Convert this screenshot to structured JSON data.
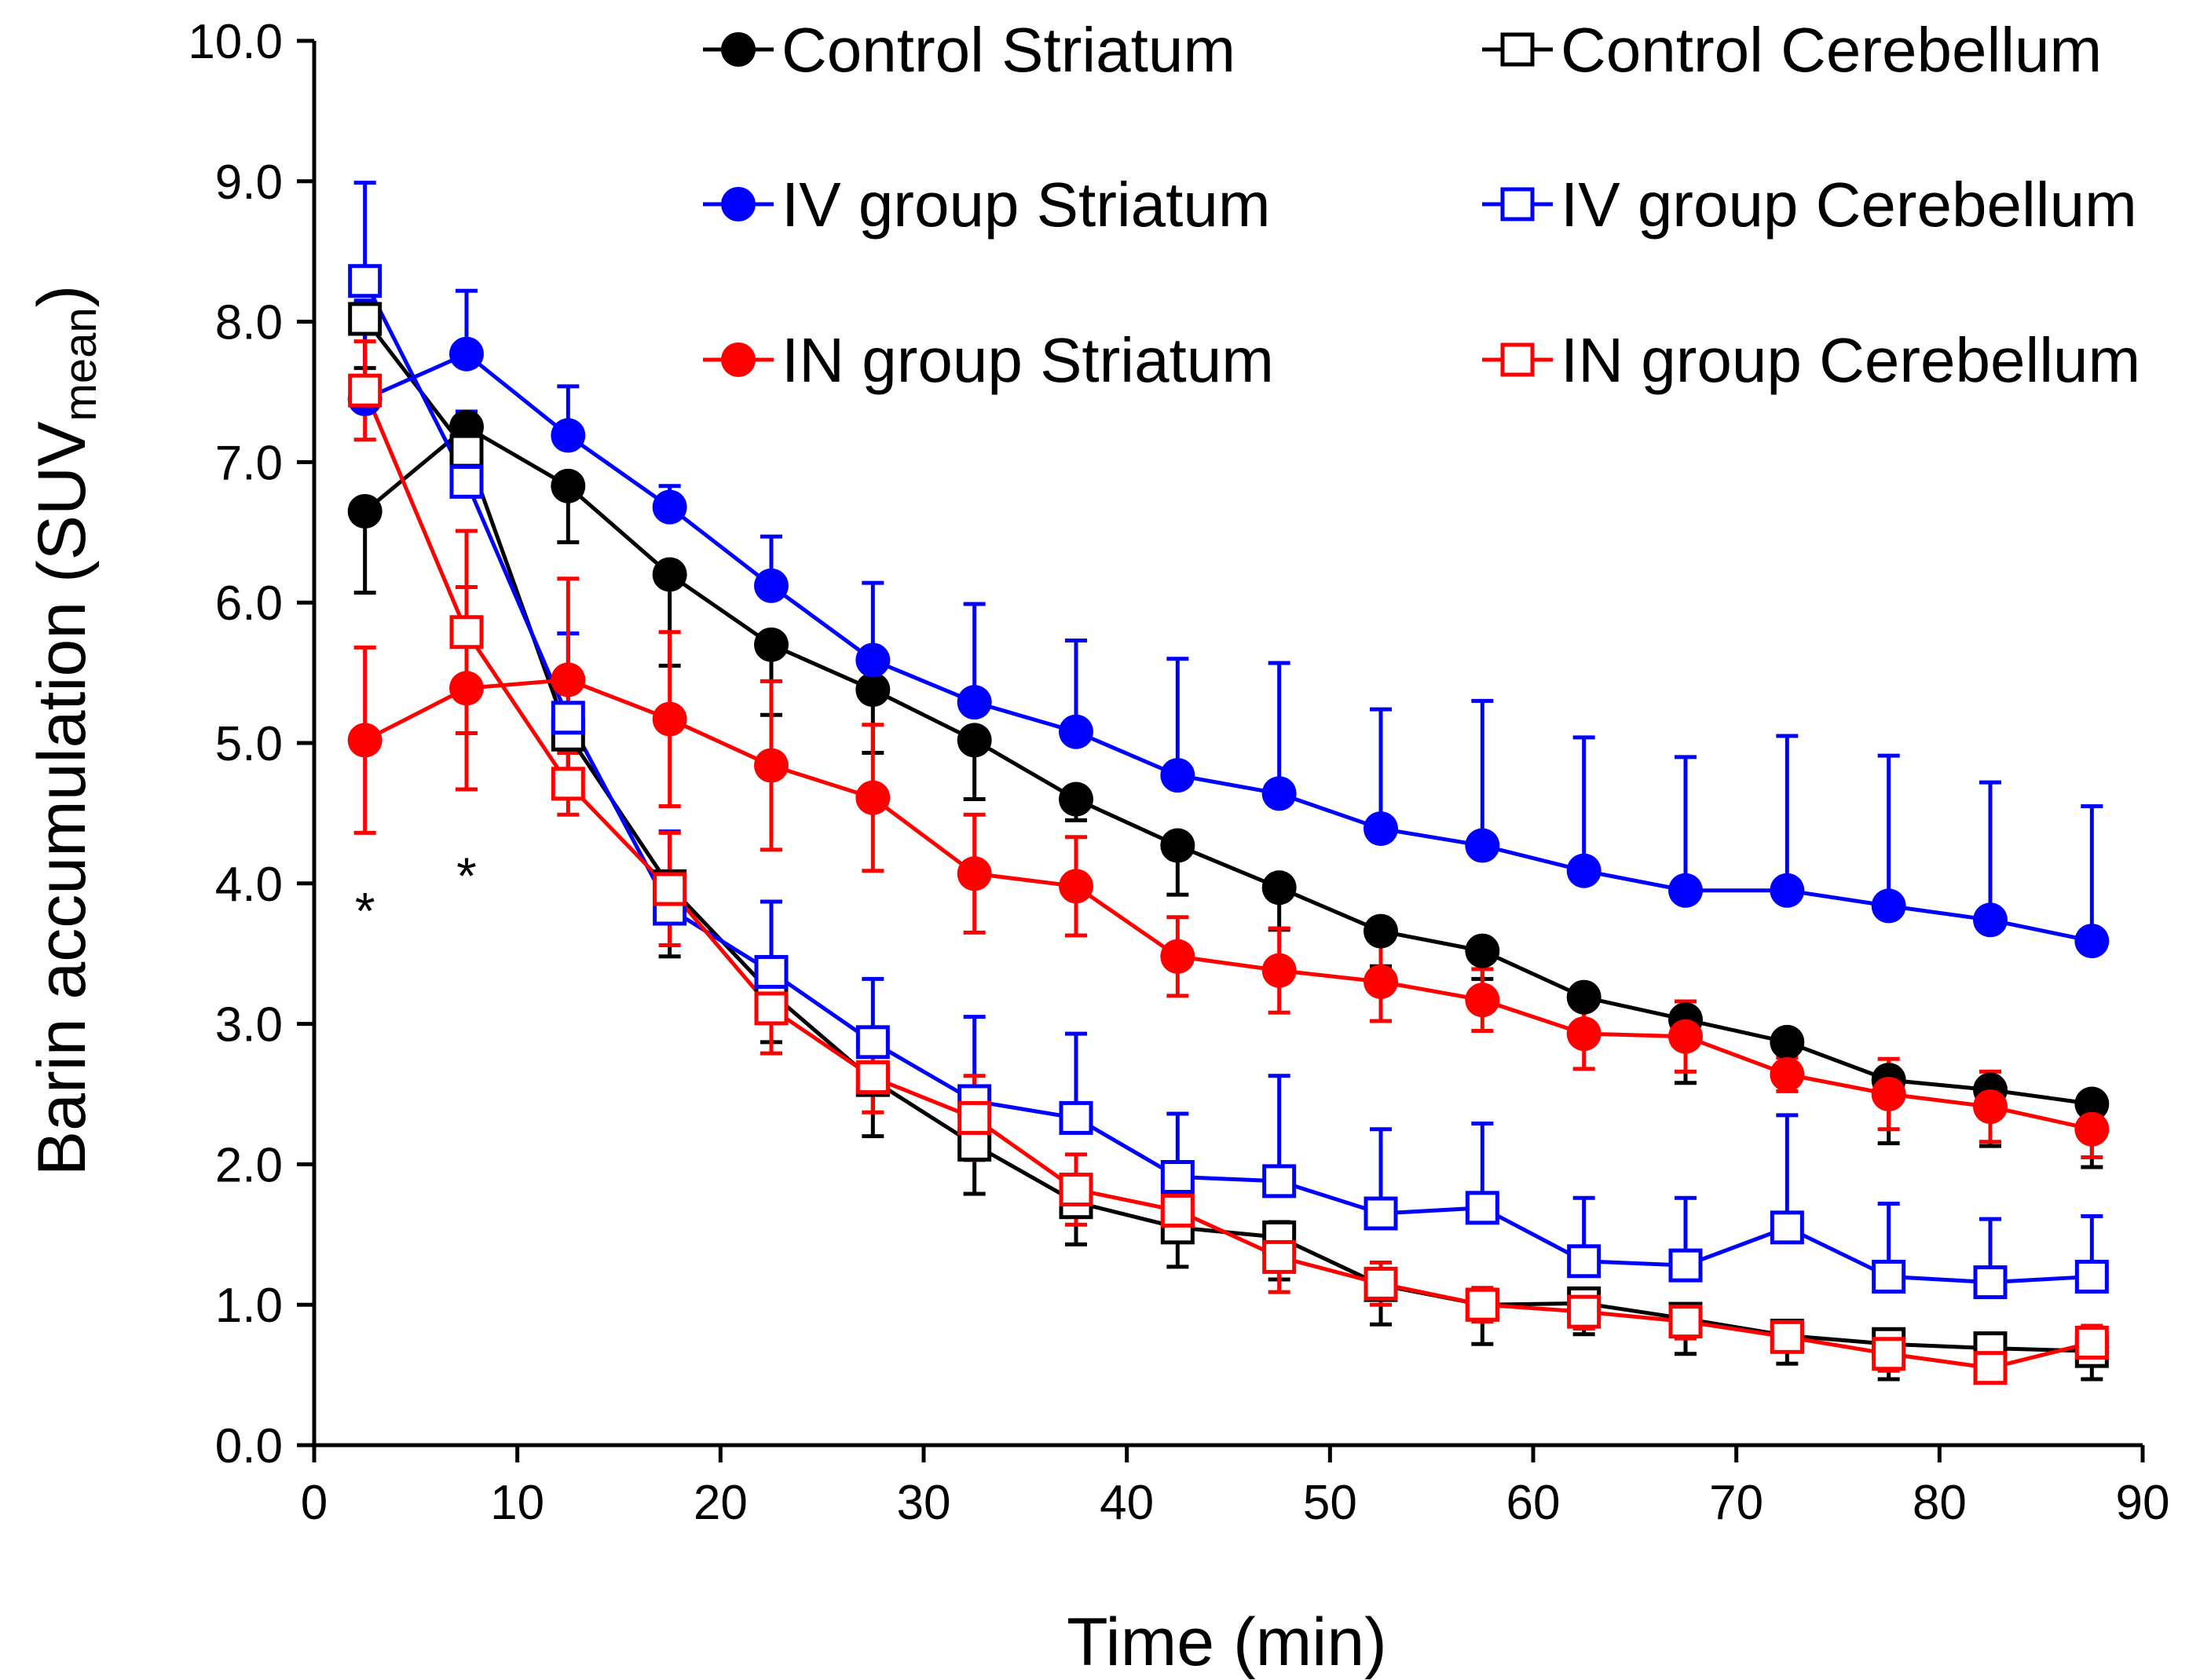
{
  "chart_data": {
    "type": "line",
    "title": "",
    "xlabel": "Time (min)",
    "ylabel": "Barin accumulation (SUV",
    "ylabel_subscript": "mean",
    "ylabel_close": ")",
    "xlim": [
      0,
      90
    ],
    "ylim": [
      0,
      10
    ],
    "x_ticks": [
      "0",
      "10",
      "20",
      "30",
      "40",
      "50",
      "60",
      "70",
      "80",
      "90"
    ],
    "y_ticks": [
      "0.0",
      "1.0",
      "2.0",
      "3.0",
      "4.0",
      "5.0",
      "6.0",
      "7.0",
      "8.0",
      "9.0",
      "10.0"
    ],
    "x": [
      2.5,
      7.5,
      12.5,
      17.5,
      22.5,
      27.5,
      32.5,
      37.5,
      42.5,
      47.5,
      52.5,
      57.5,
      62.5,
      67.5,
      72.5,
      77.5,
      82.5,
      87.5
    ],
    "legend_location": "top",
    "series": [
      {
        "name": "Control Striatum",
        "color": "#000000",
        "marker": "circle",
        "error_dir": "down",
        "values": [
          6.65,
          7.25,
          6.83,
          6.2,
          5.7,
          5.38,
          5.02,
          4.6,
          4.27,
          3.97,
          3.66,
          3.52,
          3.19,
          3.03,
          2.87,
          2.6,
          2.53,
          2.43
        ],
        "errors": [
          0.58,
          0.4,
          0.4,
          0.65,
          0.5,
          0.45,
          0.42,
          0.15,
          0.35,
          0.3,
          0.25,
          0.2,
          0.2,
          0.45,
          0.3,
          0.45,
          0.4,
          0.45
        ]
      },
      {
        "name": "Control Cerebellum",
        "color": "#000000",
        "marker": "square",
        "error_dir": "down",
        "values": [
          8.02,
          7.08,
          5.06,
          3.98,
          3.22,
          2.6,
          2.14,
          1.73,
          1.55,
          1.48,
          1.14,
          1.0,
          1.01,
          0.9,
          0.78,
          0.72,
          0.69,
          0.67
        ],
        "errors": [
          0.35,
          0.3,
          0.25,
          0.5,
          0.35,
          0.4,
          0.35,
          0.3,
          0.28,
          0.3,
          0.28,
          0.28,
          0.22,
          0.25,
          0.2,
          0.25,
          0.2,
          0.2
        ]
      },
      {
        "name": "IV group Striatum",
        "color": "#0000ff",
        "marker": "circle",
        "error_dir": "up",
        "values": [
          7.45,
          7.77,
          7.19,
          6.68,
          6.12,
          5.59,
          5.29,
          5.08,
          4.77,
          4.64,
          4.39,
          4.27,
          4.09,
          3.95,
          3.95,
          3.84,
          3.74,
          3.59
        ],
        "errors": [
          0.7,
          0.45,
          0.35,
          0.15,
          0.35,
          0.55,
          0.7,
          0.65,
          0.83,
          0.93,
          0.85,
          1.03,
          0.95,
          0.95,
          1.1,
          1.07,
          0.98,
          0.96
        ]
      },
      {
        "name": "IV group Cerebellum",
        "color": "#0000ff",
        "marker": "square",
        "error_dir": "up",
        "values": [
          8.29,
          6.86,
          5.18,
          3.82,
          3.37,
          2.87,
          2.45,
          2.33,
          1.91,
          1.88,
          1.65,
          1.69,
          1.31,
          1.28,
          1.55,
          1.2,
          1.16,
          1.2
        ],
        "errors": [
          0.7,
          0.5,
          0.6,
          0.55,
          0.5,
          0.45,
          0.6,
          0.6,
          0.45,
          0.75,
          0.6,
          0.6,
          0.45,
          0.48,
          0.8,
          0.52,
          0.45,
          0.43
        ]
      },
      {
        "name": "IN group Striatum",
        "color": "#ff0000",
        "marker": "circle",
        "error_dir": "both",
        "values": [
          5.02,
          5.39,
          5.45,
          5.17,
          4.84,
          4.61,
          4.07,
          3.98,
          3.48,
          3.38,
          3.3,
          3.17,
          2.93,
          2.91,
          2.64,
          2.5,
          2.41,
          2.25
        ],
        "errors": [
          0.66,
          0.72,
          0.72,
          0.62,
          0.6,
          0.52,
          0.42,
          0.35,
          0.28,
          0.3,
          0.28,
          0.22,
          0.25,
          0.25,
          0.12,
          0.25,
          0.25,
          0.2
        ]
      },
      {
        "name": "IN group Cerebellum",
        "color": "#ff0000",
        "marker": "square",
        "error_dir": "both",
        "values": [
          7.51,
          5.79,
          4.71,
          3.96,
          3.11,
          2.62,
          2.33,
          1.82,
          1.67,
          1.34,
          1.15,
          1.0,
          0.95,
          0.88,
          0.77,
          0.65,
          0.55,
          0.73
        ],
        "errors": [
          0.35,
          0.72,
          0.22,
          0.4,
          0.32,
          0.25,
          0.3,
          0.25,
          0.2,
          0.25,
          0.15,
          0.12,
          0.12,
          0.12,
          0.1,
          0.12,
          0.1,
          0.12
        ]
      }
    ],
    "annotations": [
      {
        "text": "*",
        "x": 2.5,
        "y": 3.9
      },
      {
        "text": "*",
        "x": 7.5,
        "y": 4.15
      }
    ]
  }
}
